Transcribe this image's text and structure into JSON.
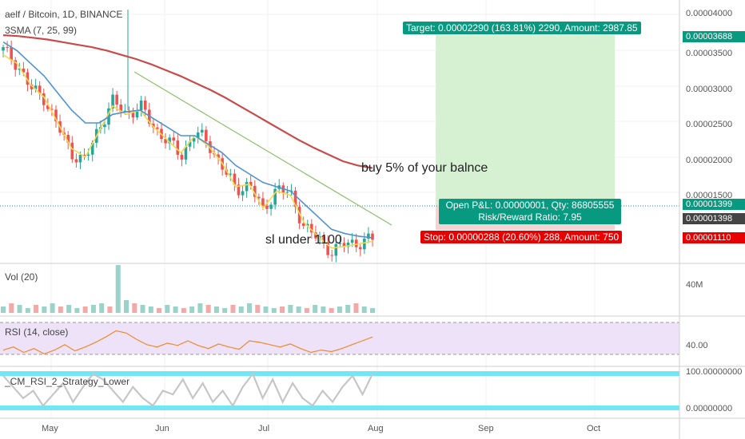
{
  "header": {
    "symbol": "aelf / Bitcoin, 1D, BINANCE",
    "indicator_sma": "3SMA (7, 25, 99)"
  },
  "panes": {
    "volume_title": "Vol (20)",
    "rsi_title": "RSI (14, close)",
    "strategy_title": "_CM_RSI_2_Strategy_Lower"
  },
  "price_axis": {
    "ticks": [
      "0.00004000",
      "0.00003500",
      "0.00003000",
      "0.00002500",
      "0.00002000",
      "0.00001500"
    ],
    "volume_tick": "40M",
    "rsi_tick": "40.00",
    "strategy_ticks": [
      "100.00000000",
      "0.00000000"
    ]
  },
  "price_labels": {
    "target": "0.00003688",
    "current": "0.00001399",
    "last": "0.00001398",
    "stop": "0.00001110"
  },
  "time_axis": [
    "May",
    "Jun",
    "Jul",
    "Aug",
    "Sep",
    "Oct"
  ],
  "position_tool": {
    "target_text": "Target: 0.00002290 (163.81%) 2290, Amount: 2987.85",
    "pnl_text": "Open P&L: 0.00000001, Qty: 86805555",
    "rr_text": "Risk/Reward Ratio: 7.95",
    "stop_text": "Stop: 0.00000288 (20.60%) 288, Amount: 750"
  },
  "annotations": {
    "buy_note": "buy 5% of your balnce",
    "sl_note": "sl under 1100"
  },
  "colors": {
    "up": "#26a69a",
    "down": "#ef5350",
    "sma7": "#f2d94e",
    "sma25": "#4f93d1",
    "sma99": "#c84b4b",
    "target_green": "#089981",
    "stop_red": "#e60000",
    "rsi_band": "#e8dcf7",
    "rsi_line": "#f08a2a",
    "cyan": "#4de1f2"
  },
  "chart_data": [
    {
      "type": "line",
      "pane": "price",
      "series": [
        {
          "values": [
            36000,
            34500,
            31500,
            30500,
            27000,
            24000,
            23000,
            27000,
            30000,
            28500,
            29500,
            27000,
            25500,
            23500,
            26500,
            25000,
            22500,
            19500,
            20500,
            17000,
            20000,
            19000,
            15500,
            13800,
            12500,
            13200,
            13500,
            13800
          ]
        },
        {
          "name": "SMA 7",
          "values": [
            35500,
            34500,
            32000,
            30500,
            27500,
            24500,
            23500,
            26500,
            29500,
            28500,
            29000,
            27000,
            25500,
            24000,
            26000,
            24800,
            22800,
            20000,
            20300,
            17500,
            19500,
            19000,
            15800,
            14200,
            12800,
            13000,
            13300,
            13600
          ]
        },
        {
          "name": "SMA 25",
          "values": [
            37000,
            36000,
            34500,
            33000,
            31000,
            29000,
            27500,
            27500,
            28500,
            28800,
            29000,
            28000,
            27000,
            26000,
            26000,
            25000,
            24000,
            22500,
            21500,
            20500,
            20000,
            19500,
            18000,
            16500,
            15000,
            14500,
            14200,
            14000
          ]
        },
        {
          "name": "SMA 99",
          "values": [
            37800,
            37700,
            37500,
            37300,
            37000,
            36700,
            36400,
            36000,
            35500,
            35000,
            34400,
            33700,
            33000,
            32200,
            31400,
            30500,
            29500,
            28500,
            27500,
            26500,
            25500,
            24600,
            23800,
            23000,
            22500,
            22200
          ]
        }
      ],
      "ylim": [
        11000,
        41000
      ]
    },
    {
      "type": "bar",
      "pane": "volume",
      "values": [
        4,
        6,
        5,
        3,
        5,
        4,
        6,
        4,
        5,
        3,
        4,
        5,
        6,
        4,
        30,
        8,
        6,
        5,
        4,
        3,
        5,
        4,
        3,
        4,
        6,
        5,
        4,
        3,
        5,
        4,
        6,
        5,
        4,
        3,
        4,
        5,
        4,
        3,
        5,
        4,
        3,
        4,
        5,
        6,
        4,
        3
      ]
    },
    {
      "type": "line",
      "pane": "rsi",
      "series": [
        {
          "values": [
            38,
            42,
            35,
            40,
            33,
            38,
            45,
            37,
            42,
            48,
            55,
            63,
            60,
            52,
            45,
            42,
            47,
            44,
            50,
            44,
            40,
            46,
            42,
            39,
            50,
            48,
            45,
            42,
            46,
            40,
            35,
            38,
            36,
            40,
            45,
            50,
            55
          ]
        }
      ],
      "ylim": [
        20,
        80
      ]
    },
    {
      "type": "line",
      "pane": "strategy",
      "series": [
        {
          "values": [
            90,
            60,
            30,
            50,
            10,
            40,
            70,
            20,
            60,
            95,
            80,
            50,
            20,
            60,
            30,
            10,
            50,
            40,
            80,
            30,
            70,
            20,
            50,
            10,
            60,
            95,
            30,
            80,
            20,
            70,
            30,
            10,
            50,
            20,
            60,
            90,
            40,
            95
          ]
        }
      ],
      "ylim": [
        0,
        100
      ]
    }
  ]
}
